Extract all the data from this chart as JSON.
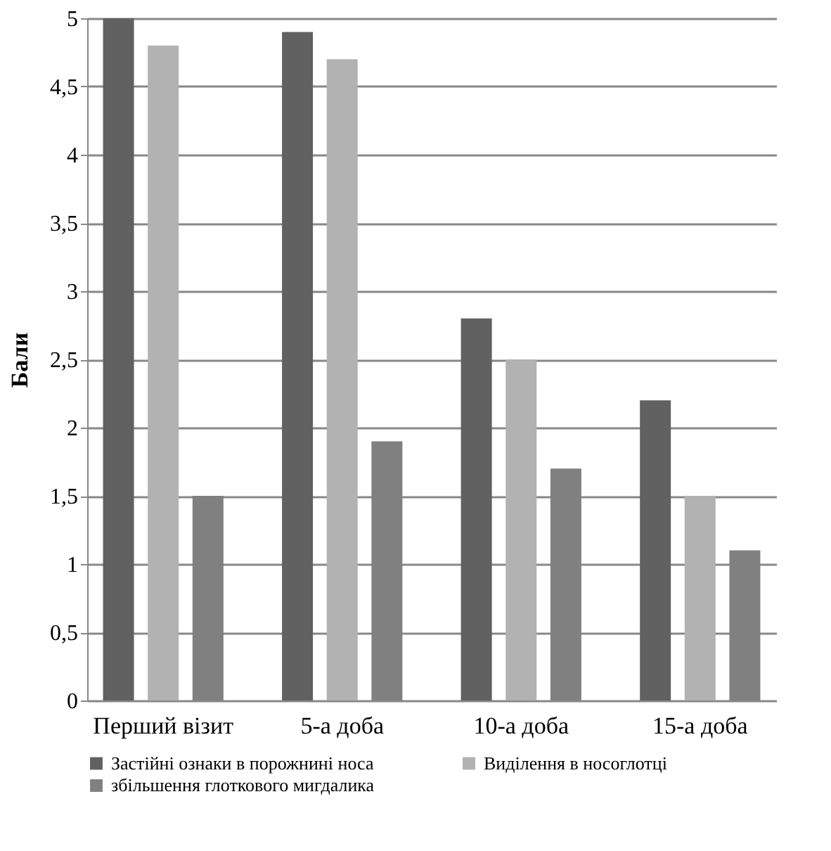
{
  "chart_data": {
    "type": "bar",
    "ylabel": "Бали",
    "categories": [
      "Перший візит",
      "5-а доба",
      "10-а доба",
      "15-а доба"
    ],
    "series": [
      {
        "name": "Застійні ознаки в порожнині носа",
        "color": "#616161",
        "values": [
          5,
          4.9,
          2.8,
          2.2
        ]
      },
      {
        "name": "Виділення в носоглотці",
        "color": "#b2b2b2",
        "values": [
          4.8,
          4.7,
          2.5,
          1.5
        ]
      },
      {
        "name": "збільшення глоткового мигдалика",
        "color": "#808080",
        "values": [
          1.5,
          1.9,
          1.7,
          1.1
        ]
      }
    ],
    "ylim": [
      0,
      5
    ],
    "yticks": [
      0,
      {
        "value": 0.5,
        "label": "0,5"
      },
      1,
      {
        "value": 1.5,
        "label": "1,5"
      },
      2,
      {
        "value": 2.5,
        "label": "2,5"
      },
      3,
      {
        "value": 3.5,
        "label": "3,5"
      },
      4,
      {
        "value": 4.5,
        "label": "4,5"
      },
      5
    ],
    "grid": "y",
    "legend": "bottom"
  }
}
